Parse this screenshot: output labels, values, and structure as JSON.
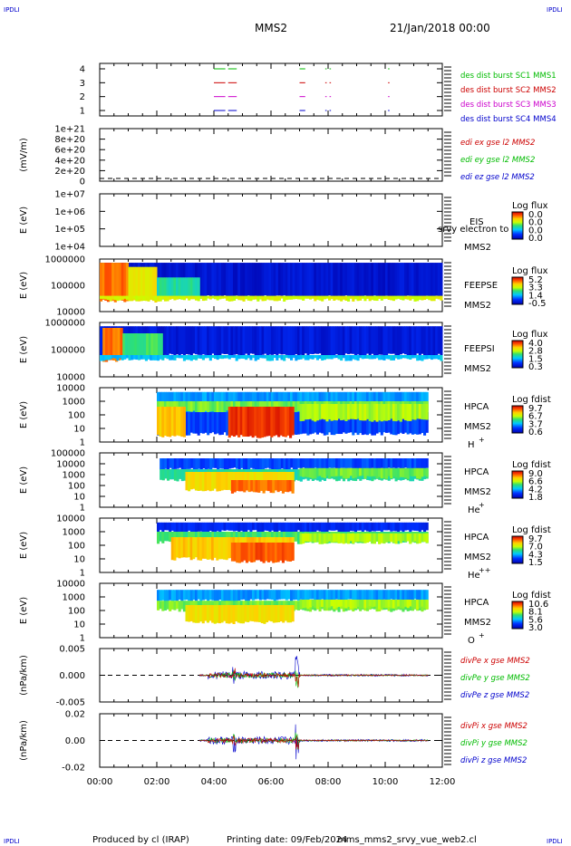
{
  "header": {
    "corner_label": "IPDLI",
    "spacecraft": "MMS2",
    "date": "21/Jan/2018 00:00"
  },
  "footer": {
    "producer": "Produced by cl (IRAP)",
    "printing_date": "Printing date: 09/Feb/2024",
    "filename": "mms_mms2_srvy_vue_web2.cl"
  },
  "time_axis": {
    "range_hours": [
      0,
      12
    ],
    "tick_labels": [
      "00:00",
      "02:00",
      "04:00",
      "06:00",
      "08:00",
      "10:00",
      "12:00"
    ]
  },
  "colors": {
    "blue": "#0000cc",
    "magenta": "#cc00cc",
    "red": "#cc0000",
    "green": "#00bb00"
  },
  "chart_data": [
    {
      "type": "scatter",
      "panel": "burst",
      "yticks": [
        "4",
        "3",
        "2",
        "1"
      ],
      "series": [
        {
          "name": "des dist burst SC1 MMS1",
          "level": 4,
          "color": "#00bb00",
          "intervals": [
            [
              4.0,
              4.4
            ],
            [
              4.5,
              4.8
            ],
            [
              7.0,
              7.2
            ],
            [
              7.9,
              7.95
            ],
            [
              8.05,
              8.1
            ],
            [
              10.1,
              10.15
            ]
          ]
        },
        {
          "name": "des dist burst SC2 MMS2",
          "level": 3,
          "color": "#cc0000",
          "intervals": [
            [
              4.0,
              4.4
            ],
            [
              4.5,
              4.8
            ],
            [
              7.0,
              7.2
            ],
            [
              7.9,
              7.95
            ],
            [
              8.05,
              8.1
            ],
            [
              10.1,
              10.15
            ]
          ]
        },
        {
          "name": "des dist burst SC3 MMS3",
          "level": 2,
          "color": "#cc00cc",
          "intervals": [
            [
              4.0,
              4.4
            ],
            [
              4.5,
              4.8
            ],
            [
              7.0,
              7.2
            ],
            [
              7.9,
              7.95
            ],
            [
              8.05,
              8.1
            ],
            [
              10.1,
              10.15
            ]
          ]
        },
        {
          "name": "des dist burst SC4 MMS4",
          "level": 1,
          "color": "#0000cc",
          "intervals": [
            [
              4.0,
              4.4
            ],
            [
              4.5,
              4.8
            ],
            [
              7.0,
              7.2
            ],
            [
              7.9,
              7.95
            ],
            [
              8.05,
              8.1
            ],
            [
              10.1,
              10.15
            ]
          ]
        }
      ]
    },
    {
      "type": "line",
      "panel": "edi",
      "ylabel": "(mV/m)",
      "yticks": [
        "1e+21",
        "8e+20",
        "6e+20",
        "4e+20",
        "2e+20",
        "0"
      ],
      "series": [
        {
          "name": "edi ex gse l2 MMS2",
          "color": "#cc0000"
        },
        {
          "name": "edi ey gse l2 MMS2",
          "color": "#00bb00"
        },
        {
          "name": "edi ez gse l2 MMS2",
          "color": "#0000cc"
        }
      ]
    },
    {
      "type": "heatmap",
      "panel": "eis",
      "ylabel": "E (eV)",
      "yticks": [
        "1e+07",
        "1e+06",
        "1e+05",
        "1e+04"
      ],
      "instrument": "EIS",
      "species": "srvy electron to",
      "spacecraft": "MMS2",
      "colorbar_title": "Log flux",
      "colorbar_ticks": [
        "0.0",
        "0.0",
        "0.0",
        "0.0"
      ]
    },
    {
      "type": "heatmap",
      "panel": "feepse",
      "ylabel": "E (eV)",
      "yticks": [
        "1000000",
        "100000",
        "10000"
      ],
      "instrument": "FEEPSE",
      "spacecraft": "MMS2",
      "colorbar_title": "Log flux",
      "colorbar_ticks": [
        "5.2",
        "3.3",
        "1.4",
        "-0.5"
      ]
    },
    {
      "type": "heatmap",
      "panel": "feepsi",
      "ylabel": "E (eV)",
      "yticks": [
        "1000000",
        "100000",
        "10000"
      ],
      "instrument": "FEEPSI",
      "spacecraft": "MMS2",
      "colorbar_title": "Log flux",
      "colorbar_ticks": [
        "4.0",
        "2.8",
        "1.5",
        "0.3"
      ]
    },
    {
      "type": "heatmap",
      "panel": "hpca-h",
      "ylabel": "E (eV)",
      "yticks": [
        "10000",
        "1000",
        "100",
        "10",
        "1"
      ],
      "instrument": "HPCA",
      "spacecraft": "MMS2",
      "species": "H",
      "charge": "+",
      "colorbar_title": "Log fdist",
      "colorbar_ticks": [
        "9.7",
        "6.7",
        "3.7",
        "0.6"
      ]
    },
    {
      "type": "heatmap",
      "panel": "hpca-he",
      "ylabel": "E (eV)",
      "yticks": [
        "100000",
        "10000",
        "1000",
        "100",
        "10",
        "1"
      ],
      "instrument": "HPCA",
      "spacecraft": "MMS2",
      "species": "He",
      "charge": "+",
      "colorbar_title": "Log fdist",
      "colorbar_ticks": [
        "9.0",
        "6.6",
        "4.2",
        "1.8"
      ]
    },
    {
      "type": "heatmap",
      "panel": "hpca-he2",
      "ylabel": "E (eV)",
      "yticks": [
        "10000",
        "1000",
        "100",
        "10",
        "1"
      ],
      "instrument": "HPCA",
      "spacecraft": "MMS2",
      "species": "He",
      "charge": "++",
      "colorbar_title": "Log fdist",
      "colorbar_ticks": [
        "9.7",
        "7.0",
        "4.3",
        "1.5"
      ]
    },
    {
      "type": "heatmap",
      "panel": "hpca-o",
      "ylabel": "E (eV)",
      "yticks": [
        "10000",
        "1000",
        "100",
        "10",
        "1"
      ],
      "instrument": "HPCA",
      "spacecraft": "MMS2",
      "species": "O",
      "charge": "+",
      "colorbar_title": "Log fdist",
      "colorbar_ticks": [
        "10.6",
        "8.1",
        "5.6",
        "3.0"
      ]
    },
    {
      "type": "line",
      "panel": "divpe",
      "ylabel": "(nPa/km)",
      "yticks": [
        "0.005",
        "0.000",
        "-0.005"
      ],
      "ylim": [
        -0.01,
        0.01
      ],
      "series": [
        {
          "name": "divPe x gse MMS2",
          "color": "#cc0000"
        },
        {
          "name": "divPe y gse MMS2",
          "color": "#00bb00"
        },
        {
          "name": "divPe z gse MMS2",
          "color": "#0000cc"
        }
      ]
    },
    {
      "type": "line",
      "panel": "divpi",
      "ylabel": "(nPa/km)",
      "yticks": [
        "0.02",
        "0.00",
        "-0.02"
      ],
      "ylim": [
        -0.035,
        0.035
      ],
      "series": [
        {
          "name": "divPi x gse MMS2",
          "color": "#cc0000"
        },
        {
          "name": "divPi y gse MMS2",
          "color": "#00bb00"
        },
        {
          "name": "divPi z gse MMS2",
          "color": "#0000cc"
        }
      ]
    }
  ]
}
